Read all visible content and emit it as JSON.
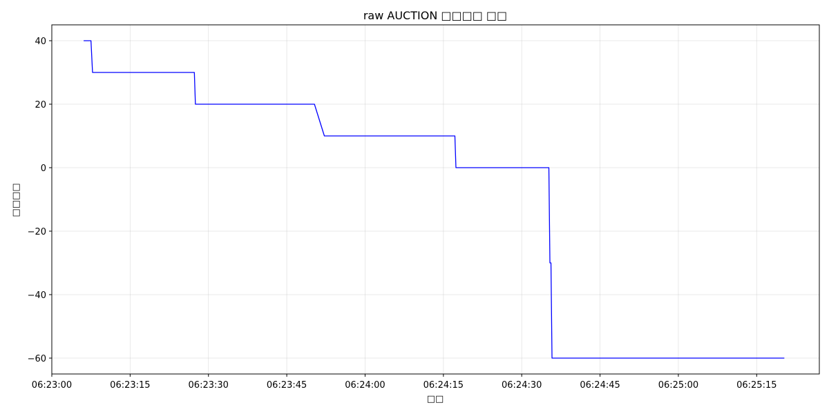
{
  "chart_data": {
    "type": "line",
    "title": "raw AUCTION □□□□ □□",
    "xlabel": "□□",
    "ylabel": "□□□□",
    "x_ticks": [
      "06:23:00",
      "06:23:15",
      "06:23:30",
      "06:23:45",
      "06:24:00",
      "06:24:15",
      "06:24:30",
      "06:24:45",
      "06:25:00",
      "06:25:15"
    ],
    "y_ticks": [
      "40",
      "20",
      "0",
      "−20",
      "−40",
      "−60"
    ],
    "y_tick_values": [
      40,
      20,
      0,
      -20,
      -40,
      -60
    ],
    "xlim": [
      "06:23:00",
      "06:25:27"
    ],
    "ylim": [
      -65,
      45
    ],
    "grid": true,
    "series": [
      {
        "color": "#0000ff",
        "points": [
          {
            "x": "06:23:06.1",
            "y": 40
          },
          {
            "x": "06:23:07.5",
            "y": 40
          },
          {
            "x": "06:23:07.8",
            "y": 30
          },
          {
            "x": "06:23:27.3",
            "y": 30
          },
          {
            "x": "06:23:27.5",
            "y": 20
          },
          {
            "x": "06:23:50.3",
            "y": 20
          },
          {
            "x": "06:23:52.2",
            "y": 10
          },
          {
            "x": "06:24:17.2",
            "y": 10
          },
          {
            "x": "06:24:17.4",
            "y": 0
          },
          {
            "x": "06:24:35.2",
            "y": 0
          },
          {
            "x": "06:24:35.4",
            "y": -30
          },
          {
            "x": "06:24:35.6",
            "y": -30
          },
          {
            "x": "06:24:35.8",
            "y": -60
          },
          {
            "x": "06:25:20.3",
            "y": -60
          }
        ]
      }
    ]
  }
}
